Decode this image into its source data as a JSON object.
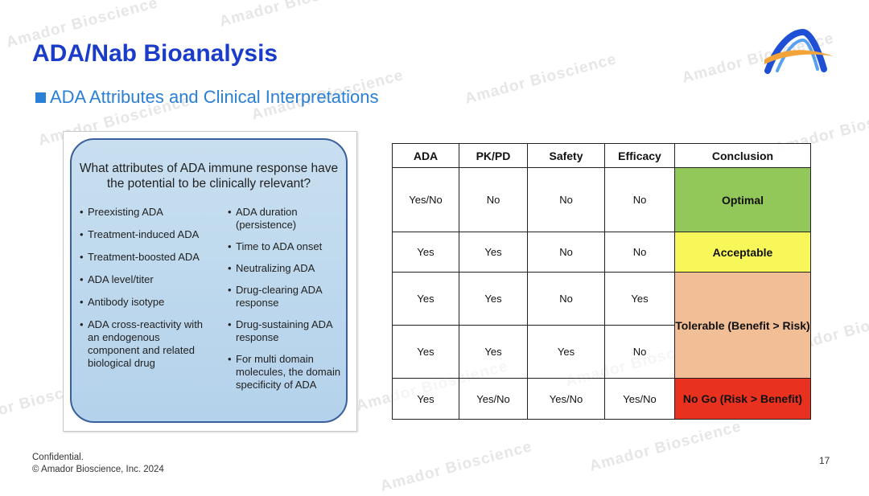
{
  "watermark": "Amador Bioscience",
  "slide": {
    "title": "ADA/Nab Bioanalysis",
    "subtitle": "ADA Attributes and Clinical Interpretations"
  },
  "figure": {
    "question": "What attributes of ADA immune response have the potential to be clinically relevant?",
    "left_items": [
      "Preexisting ADA",
      "Treatment-induced ADA",
      "Treatment-boosted ADA",
      "ADA level/titer",
      "Antibody isotype",
      "ADA cross-reactivity with an endogenous component and related biological drug"
    ],
    "right_items": [
      "ADA duration (persistence)",
      "Time to ADA onset",
      "Neutralizing ADA",
      "Drug-clearing ADA response",
      "Drug-sustaining ADA response",
      "For multi domain molecules, the domain specificity of ADA"
    ]
  },
  "table": {
    "headers": [
      "ADA",
      "PK/PD",
      "Safety",
      "Efficacy",
      "Conclusion"
    ],
    "rows": [
      [
        "Yes/No",
        "No",
        "No",
        "No"
      ],
      [
        "Yes",
        "Yes",
        "No",
        "No"
      ],
      [
        "Yes",
        "Yes",
        "No",
        "Yes"
      ],
      [
        "Yes",
        "Yes",
        "Yes",
        "No"
      ],
      [
        "Yes",
        "Yes/No",
        "Yes/No",
        "Yes/No"
      ]
    ],
    "conclusions": [
      "Optimal",
      "Acceptable",
      "Tolerable (Benefit > Risk)",
      "No Go (Risk > Benefit)"
    ],
    "conclusion_colors": [
      "#92c85a",
      "#f7f75a",
      "#f1be96",
      "#e8321f"
    ]
  },
  "footer": {
    "confidential": "Confidential.",
    "copyright": "© Amador Bioscience, Inc. 2024",
    "page_number": "17"
  },
  "colors": {
    "title": "#1a3cc8",
    "subtitle": "#2a7fd6"
  },
  "icons": {
    "logo": "amador-arch-logo"
  }
}
